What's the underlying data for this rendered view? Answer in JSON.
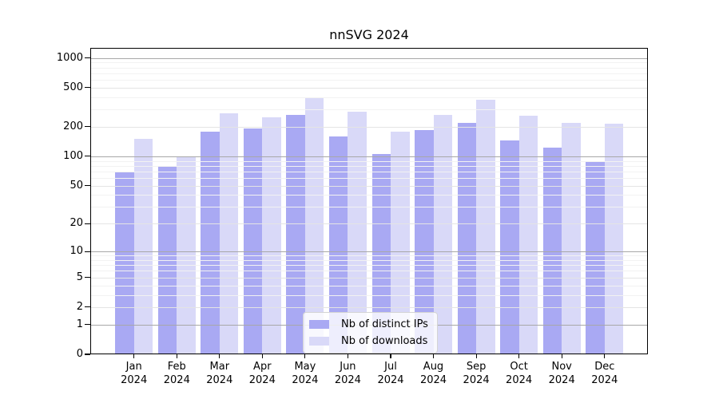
{
  "chart_data": {
    "type": "bar",
    "title": "nnSVG 2024",
    "x_year": "2024",
    "categories": [
      "Jan",
      "Feb",
      "Mar",
      "Apr",
      "May",
      "Jun",
      "Jul",
      "Aug",
      "Sep",
      "Oct",
      "Nov",
      "Dec"
    ],
    "series": [
      {
        "name": "Nb of distinct IPs",
        "key": "distinct-ips",
        "color": "#a9a9f3",
        "values": [
          70,
          80,
          180,
          194,
          262,
          160,
          106,
          185,
          220,
          145,
          123,
          90
        ]
      },
      {
        "name": "Nb of downloads",
        "key": "downloads",
        "color": "#d9d9f8",
        "values": [
          151,
          100,
          272,
          248,
          392,
          285,
          178,
          265,
          380,
          260,
          218,
          214
        ]
      }
    ],
    "y_ticks": [
      0,
      1,
      2,
      5,
      10,
      20,
      50,
      100,
      200,
      500,
      1000
    ],
    "y_scale": "log1p",
    "ylim": [
      0,
      1250
    ],
    "grid": true,
    "legend_position": "lower-center-inside",
    "colors": {
      "axis": "#000000",
      "grid_decade": "#a8a8a8",
      "grid_labeled": "#e4e4e4",
      "grid_minor": "#f2f2f2",
      "background": "#ffffff"
    }
  }
}
